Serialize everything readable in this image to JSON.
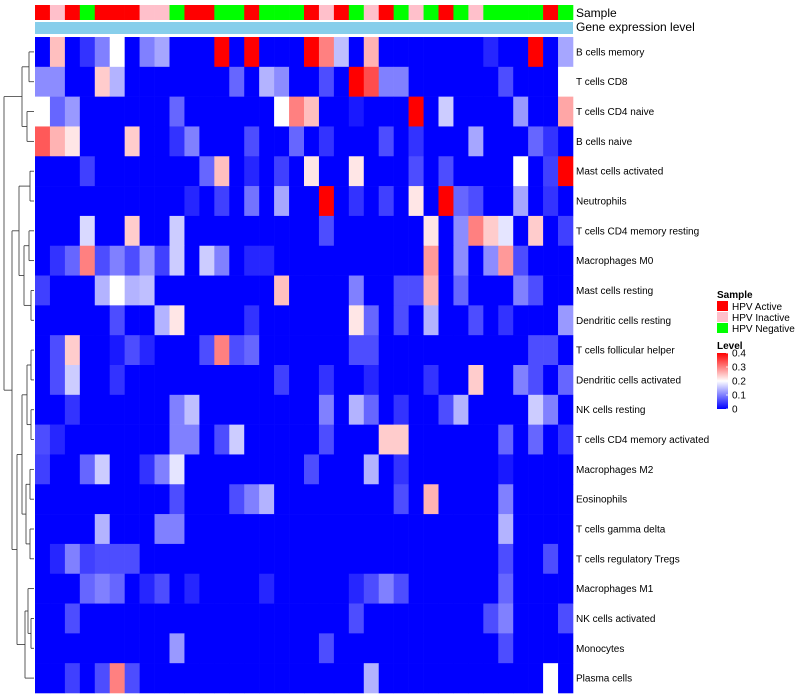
{
  "chart_data": {
    "type": "heatmap",
    "annotation_labels": [
      "Sample",
      "Gene expression level"
    ],
    "rows": [
      "B cells memory",
      "T cells CD8",
      "T cells CD4 naive",
      "B cells naive",
      "Mast cells activated",
      "Neutrophils",
      "T cells CD4 memory resting",
      "Macrophages M0",
      "Mast cells resting",
      "Dendritic cells resting",
      "T cells follicular helper",
      "Dendritic cells activated",
      "NK cells resting",
      "T cells CD4 memory activated",
      "Macrophages M2",
      "Eosinophils",
      "T cells gamma delta",
      "T cells regulatory  Tregs",
      "Macrophages M1",
      "NK cells activated",
      "Monocytes",
      "Plasma cells"
    ],
    "n_columns": 36,
    "sample_groups": [
      "A",
      "I",
      "A",
      "N",
      "A",
      "A",
      "A",
      "I",
      "I",
      "N",
      "A",
      "A",
      "N",
      "N",
      "A",
      "N",
      "N",
      "N",
      "A",
      "I",
      "A",
      "N",
      "I",
      "A",
      "N",
      "I",
      "N",
      "A",
      "N",
      "I",
      "N",
      "N",
      "N",
      "N",
      "A",
      "N"
    ],
    "values": [
      [
        0.0,
        0.25,
        0.0,
        0.04,
        0.1,
        0.2,
        0.0,
        0.1,
        0.13,
        0.0,
        0.0,
        0.0,
        0.4,
        0.0,
        0.4,
        0.0,
        0.0,
        0.0,
        0.4,
        0.3,
        0.15,
        0.0,
        0.26,
        0.0,
        0.0,
        0.0,
        0.0,
        0.0,
        0.0,
        0.0,
        0.03,
        0.0,
        0.0,
        0.4,
        0.0,
        0.13
      ],
      [
        0.11,
        0.11,
        0.0,
        0.0,
        0.24,
        0.14,
        0.0,
        0.0,
        0.0,
        0.0,
        0.0,
        0.0,
        0.0,
        0.08,
        0.0,
        0.14,
        0.11,
        0.0,
        0.0,
        0.06,
        0.0,
        0.4,
        0.34,
        0.1,
        0.1,
        0.0,
        0.0,
        0.0,
        0.0,
        0.0,
        0.0,
        0.06,
        0.0,
        0.0,
        0.0,
        0.2
      ],
      [
        0.2,
        0.08,
        0.12,
        0.0,
        0.0,
        0.0,
        0.0,
        0.0,
        0.0,
        0.08,
        0.0,
        0.0,
        0.0,
        0.0,
        0.0,
        0.0,
        0.2,
        0.3,
        0.25,
        0.0,
        0.0,
        0.02,
        0.0,
        0.0,
        0.0,
        0.4,
        0.0,
        0.16,
        0.0,
        0.0,
        0.0,
        0.0,
        0.12,
        0.0,
        0.0,
        0.27
      ],
      [
        0.33,
        0.26,
        0.22,
        0.0,
        0.0,
        0.0,
        0.24,
        0.0,
        0.0,
        0.04,
        0.1,
        0.0,
        0.0,
        0.0,
        0.06,
        0.0,
        0.0,
        0.08,
        0.0,
        0.04,
        0.0,
        0.0,
        0.0,
        0.06,
        0.0,
        0.04,
        0.0,
        0.0,
        0.0,
        0.13,
        0.0,
        0.0,
        0.0,
        0.08,
        0.04,
        0.0
      ],
      [
        0.0,
        0.0,
        0.0,
        0.05,
        0.0,
        0.0,
        0.0,
        0.0,
        0.0,
        0.0,
        0.0,
        0.08,
        0.25,
        0.0,
        0.03,
        0.0,
        0.05,
        0.0,
        0.22,
        0.0,
        0.0,
        0.22,
        0.0,
        0.0,
        0.0,
        0.06,
        0.0,
        0.06,
        0.0,
        0.0,
        0.0,
        0.0,
        0.2,
        0.0,
        0.05,
        0.4
      ],
      [
        0.0,
        0.0,
        0.0,
        0.0,
        0.0,
        0.0,
        0.0,
        0.0,
        0.0,
        0.0,
        0.03,
        0.0,
        0.05,
        0.0,
        0.09,
        0.0,
        0.13,
        0.0,
        0.0,
        0.4,
        0.0,
        0.04,
        0.0,
        0.05,
        0.0,
        0.22,
        0.0,
        0.4,
        0.08,
        0.06,
        0.0,
        0.0,
        0.13,
        0.0,
        0.04,
        0.0
      ],
      [
        0.0,
        0.0,
        0.0,
        0.17,
        0.0,
        0.0,
        0.24,
        0.0,
        0.0,
        0.16,
        0.0,
        0.0,
        0.0,
        0.0,
        0.0,
        0.0,
        0.0,
        0.0,
        0.0,
        0.06,
        0.0,
        0.0,
        0.0,
        0.0,
        0.0,
        0.0,
        0.22,
        0.0,
        0.11,
        0.3,
        0.24,
        0.18,
        0.0,
        0.24,
        0.0,
        0.05
      ],
      [
        0.0,
        0.04,
        0.08,
        0.3,
        0.06,
        0.1,
        0.06,
        0.12,
        0.05,
        0.16,
        0.0,
        0.16,
        0.1,
        0.0,
        0.03,
        0.03,
        0.0,
        0.0,
        0.0,
        0.0,
        0.0,
        0.0,
        0.0,
        0.0,
        0.0,
        0.0,
        0.28,
        0.0,
        0.11,
        0.0,
        0.11,
        0.28,
        0.06,
        0.0,
        0.0,
        0.0
      ],
      [
        0.05,
        0.0,
        0.0,
        0.0,
        0.14,
        0.2,
        0.14,
        0.15,
        0.0,
        0.0,
        0.0,
        0.0,
        0.0,
        0.0,
        0.0,
        0.0,
        0.25,
        0.0,
        0.0,
        0.0,
        0.0,
        0.1,
        0.0,
        0.0,
        0.06,
        0.06,
        0.26,
        0.0,
        0.08,
        0.0,
        0.0,
        0.0,
        0.1,
        0.06,
        0.0,
        0.0
      ],
      [
        0.0,
        0.0,
        0.0,
        0.0,
        0.0,
        0.06,
        0.0,
        0.0,
        0.14,
        0.22,
        0.0,
        0.0,
        0.0,
        0.0,
        0.04,
        0.0,
        0.0,
        0.0,
        0.0,
        0.0,
        0.0,
        0.22,
        0.08,
        0.0,
        0.06,
        0.0,
        0.14,
        0.0,
        0.0,
        0.06,
        0.0,
        0.04,
        0.0,
        0.0,
        0.0,
        0.12
      ],
      [
        0.0,
        0.06,
        0.24,
        0.0,
        0.0,
        0.02,
        0.06,
        0.03,
        0.0,
        0.0,
        0.0,
        0.06,
        0.3,
        0.06,
        0.08,
        0.0,
        0.0,
        0.0,
        0.0,
        0.0,
        0.0,
        0.06,
        0.06,
        0.0,
        0.0,
        0.0,
        0.0,
        0.0,
        0.0,
        0.0,
        0.0,
        0.0,
        0.0,
        0.06,
        0.06,
        0.0
      ],
      [
        0.0,
        0.06,
        0.16,
        0.0,
        0.0,
        0.04,
        0.0,
        0.0,
        0.0,
        0.0,
        0.0,
        0.0,
        0.0,
        0.0,
        0.0,
        0.0,
        0.05,
        0.0,
        0.0,
        0.04,
        0.0,
        0.0,
        0.03,
        0.0,
        0.0,
        0.0,
        0.04,
        0.0,
        0.0,
        0.24,
        0.0,
        0.0,
        0.1,
        0.06,
        0.0,
        0.08
      ],
      [
        0.0,
        0.0,
        0.04,
        0.0,
        0.0,
        0.0,
        0.0,
        0.0,
        0.0,
        0.1,
        0.15,
        0.0,
        0.0,
        0.0,
        0.0,
        0.0,
        0.0,
        0.0,
        0.0,
        0.1,
        0.0,
        0.14,
        0.08,
        0.0,
        0.04,
        0.0,
        0.0,
        0.06,
        0.14,
        0.0,
        0.0,
        0.0,
        0.0,
        0.16,
        0.1,
        0.0
      ],
      [
        0.06,
        0.03,
        0.0,
        0.0,
        0.0,
        0.0,
        0.0,
        0.0,
        0.0,
        0.1,
        0.1,
        0.0,
        0.06,
        0.16,
        0.0,
        0.0,
        0.0,
        0.0,
        0.0,
        0.06,
        0.0,
        0.0,
        0.0,
        0.24,
        0.24,
        0.0,
        0.0,
        0.0,
        0.0,
        0.0,
        0.0,
        0.08,
        0.0,
        0.08,
        0.0,
        0.04
      ],
      [
        0.05,
        0.0,
        0.0,
        0.08,
        0.16,
        0.0,
        0.0,
        0.04,
        0.1,
        0.18,
        0.0,
        0.0,
        0.0,
        0.0,
        0.0,
        0.0,
        0.0,
        0.0,
        0.06,
        0.0,
        0.0,
        0.0,
        0.14,
        0.0,
        0.04,
        0.0,
        0.0,
        0.0,
        0.0,
        0.0,
        0.0,
        0.02,
        0.0,
        0.0,
        0.0,
        0.0
      ],
      [
        0.0,
        0.0,
        0.0,
        0.0,
        0.0,
        0.0,
        0.0,
        0.0,
        0.0,
        0.06,
        0.0,
        0.0,
        0.0,
        0.06,
        0.1,
        0.14,
        0.0,
        0.0,
        0.0,
        0.0,
        0.0,
        0.0,
        0.0,
        0.0,
        0.06,
        0.0,
        0.26,
        0.0,
        0.0,
        0.0,
        0.0,
        0.1,
        0.0,
        0.0,
        0.0,
        0.0
      ],
      [
        0.0,
        0.0,
        0.0,
        0.0,
        0.14,
        0.0,
        0.0,
        0.0,
        0.1,
        0.1,
        0.0,
        0.0,
        0.0,
        0.0,
        0.0,
        0.0,
        0.0,
        0.0,
        0.0,
        0.0,
        0.0,
        0.0,
        0.0,
        0.0,
        0.0,
        0.0,
        0.0,
        0.0,
        0.0,
        0.0,
        0.0,
        0.14,
        0.0,
        0.0,
        0.0,
        0.0
      ],
      [
        0.0,
        0.03,
        0.1,
        0.05,
        0.06,
        0.06,
        0.06,
        0.0,
        0.0,
        0.0,
        0.0,
        0.0,
        0.0,
        0.0,
        0.0,
        0.0,
        0.0,
        0.0,
        0.0,
        0.0,
        0.0,
        0.0,
        0.0,
        0.0,
        0.0,
        0.0,
        0.0,
        0.0,
        0.0,
        0.0,
        0.0,
        0.06,
        0.0,
        0.0,
        0.06,
        0.0
      ],
      [
        0.0,
        0.0,
        0.0,
        0.08,
        0.1,
        0.08,
        0.0,
        0.03,
        0.06,
        0.0,
        0.03,
        0.0,
        0.0,
        0.0,
        0.0,
        0.03,
        0.0,
        0.0,
        0.0,
        0.0,
        0.0,
        0.03,
        0.06,
        0.1,
        0.06,
        0.0,
        0.0,
        0.0,
        0.0,
        0.0,
        0.0,
        0.08,
        0.0,
        0.0,
        0.0,
        0.0
      ],
      [
        0.0,
        0.0,
        0.06,
        0.0,
        0.0,
        0.0,
        0.0,
        0.0,
        0.0,
        0.0,
        0.0,
        0.0,
        0.0,
        0.0,
        0.0,
        0.0,
        0.0,
        0.0,
        0.0,
        0.0,
        0.0,
        0.06,
        0.0,
        0.0,
        0.0,
        0.0,
        0.0,
        0.0,
        0.0,
        0.0,
        0.06,
        0.1,
        0.0,
        0.0,
        0.0,
        0.06
      ],
      [
        0.0,
        0.0,
        0.0,
        0.0,
        0.0,
        0.0,
        0.0,
        0.0,
        0.0,
        0.12,
        0.0,
        0.0,
        0.0,
        0.0,
        0.0,
        0.0,
        0.0,
        0.0,
        0.0,
        0.06,
        0.0,
        0.0,
        0.0,
        0.0,
        0.0,
        0.0,
        0.0,
        0.0,
        0.0,
        0.0,
        0.0,
        0.06,
        0.0,
        0.0,
        0.0,
        0.0
      ],
      [
        0.0,
        0.0,
        0.05,
        0.0,
        0.06,
        0.3,
        0.06,
        0.0,
        0.0,
        0.0,
        0.0,
        0.0,
        0.0,
        0.0,
        0.0,
        0.0,
        0.0,
        0.0,
        0.0,
        0.0,
        0.0,
        0.0,
        0.14,
        0.0,
        0.0,
        0.0,
        0.0,
        0.0,
        0.0,
        0.0,
        0.0,
        0.0,
        0.0,
        0.0,
        0.2,
        0.0
      ]
    ],
    "legend": {
      "sample_title": "Sample",
      "sample_entries": [
        {
          "key": "A",
          "label": "HPV Active",
          "color": "#ff0000"
        },
        {
          "key": "I",
          "label": "HPV Inactive",
          "color": "#ffc0cb"
        },
        {
          "key": "N",
          "label": "HPV Negative",
          "color": "#00ff00"
        }
      ],
      "level_title": "Level",
      "level_ticks": [
        0.4,
        0.3,
        0.2,
        0.1,
        0
      ],
      "level_range": [
        0,
        0.4
      ]
    },
    "colors": {
      "low": "#0000ff",
      "mid": "#ffffff",
      "high": "#ff0000",
      "expression_band": "#87ceeb",
      "dendrogram": "#333333"
    }
  }
}
